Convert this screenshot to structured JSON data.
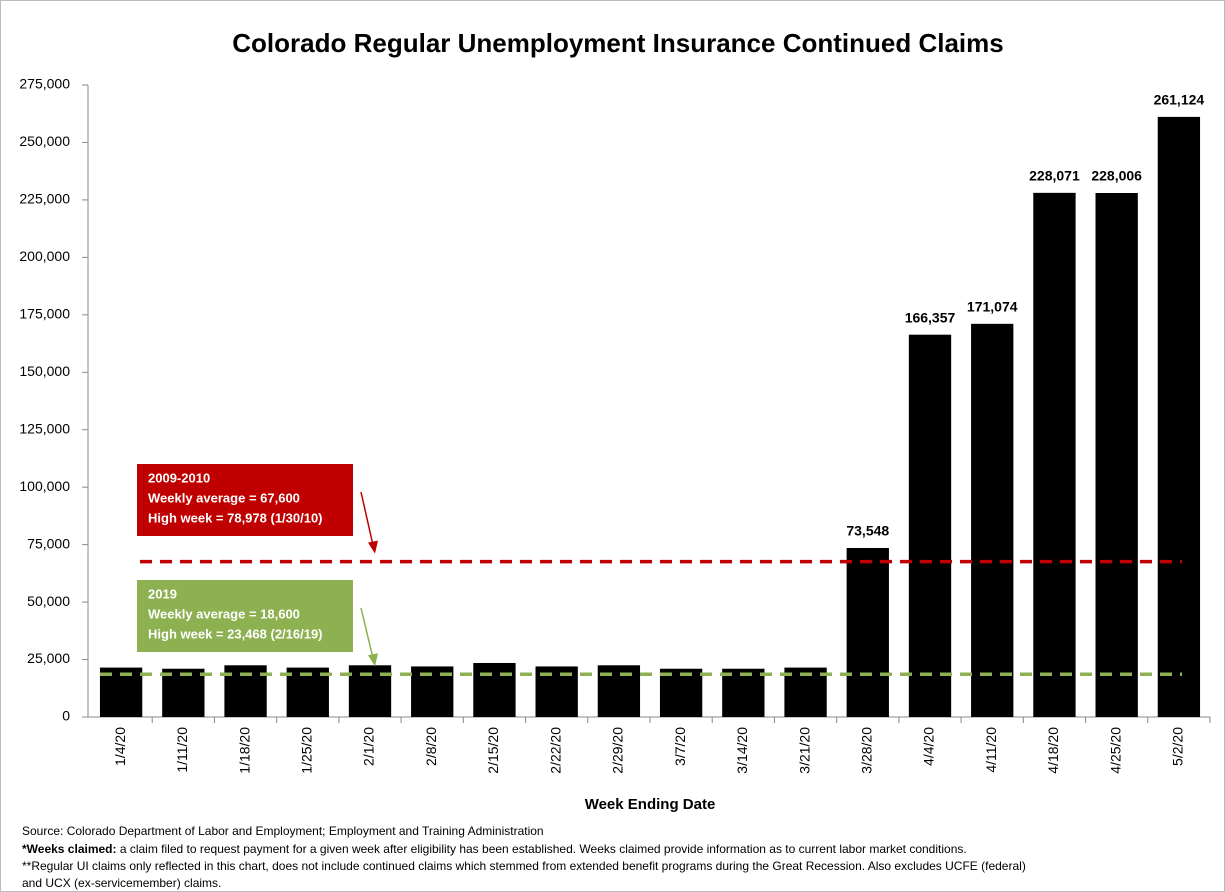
{
  "chart_data": {
    "type": "bar",
    "title": "Colorado Regular Unemployment Insurance Continued Claims",
    "x_label": "Week Ending Date",
    "categories": [
      "1/4/20",
      "1/11/20",
      "1/18/20",
      "1/25/20",
      "2/1/20",
      "2/8/20",
      "2/15/20",
      "2/22/20",
      "2/29/20",
      "3/7/20",
      "3/14/20",
      "3/21/20",
      "3/28/20",
      "4/4/20",
      "4/11/20",
      "4/18/20",
      "4/25/20",
      "5/2/20"
    ],
    "values": [
      21500,
      21000,
      22500,
      21500,
      22500,
      22000,
      23500,
      22000,
      22500,
      21000,
      21000,
      21500,
      73548,
      166357,
      171074,
      228071,
      228006,
      261124
    ],
    "value_labels": [
      null,
      null,
      null,
      null,
      null,
      null,
      null,
      null,
      null,
      null,
      null,
      null,
      "73,548",
      "166,357",
      "171,074",
      "228,071",
      "228,006",
      "261,124"
    ],
    "color": "#000000",
    "ylim": [
      0,
      275000
    ],
    "yticks": [
      0,
      {
        "value": 25000,
        "label": "25,000"
      },
      {
        "value": 50000,
        "label": "50,000"
      },
      {
        "value": 75000,
        "label": "75,000"
      },
      {
        "value": 100000,
        "label": "100,000"
      },
      {
        "value": 125000,
        "label": "125,000"
      },
      {
        "value": 150000,
        "label": "150,000"
      },
      {
        "value": 175000,
        "label": "175,000"
      },
      {
        "value": 200000,
        "label": "200,000"
      },
      {
        "value": 225000,
        "label": "225,000"
      },
      {
        "value": 250000,
        "label": "250,000"
      },
      {
        "value": 275000,
        "label": "275,000"
      }
    ],
    "reference_lines": [
      {
        "value": 67600,
        "color": "#c00000",
        "lines": [
          "2009-2010",
          "Weekly average = 67,600",
          "High week = 78,978 (1/30/10)"
        ]
      },
      {
        "value": 18600,
        "color": "#8db050",
        "lines": [
          "2019",
          "Weekly average = 18,600",
          "High week = 23,468 (2/16/19)"
        ]
      }
    ],
    "source": "Source: Colorado Department of Labor and Employment; Employment and Training Administration",
    "notes": [
      {
        "bold": "*Weeks claimed:",
        "text": " a claim filed to request payment for a given week after eligibility has been established. Weeks claimed provide information as to current labor market conditions."
      },
      {
        "text": "**Regular UI claims only reflected in this chart, does not include continued claims which stemmed from extended benefit programs during the Great Recession. Also excludes UCFE (federal)"
      },
      {
        "text": "and UCX (ex-servicemember) claims."
      }
    ]
  }
}
